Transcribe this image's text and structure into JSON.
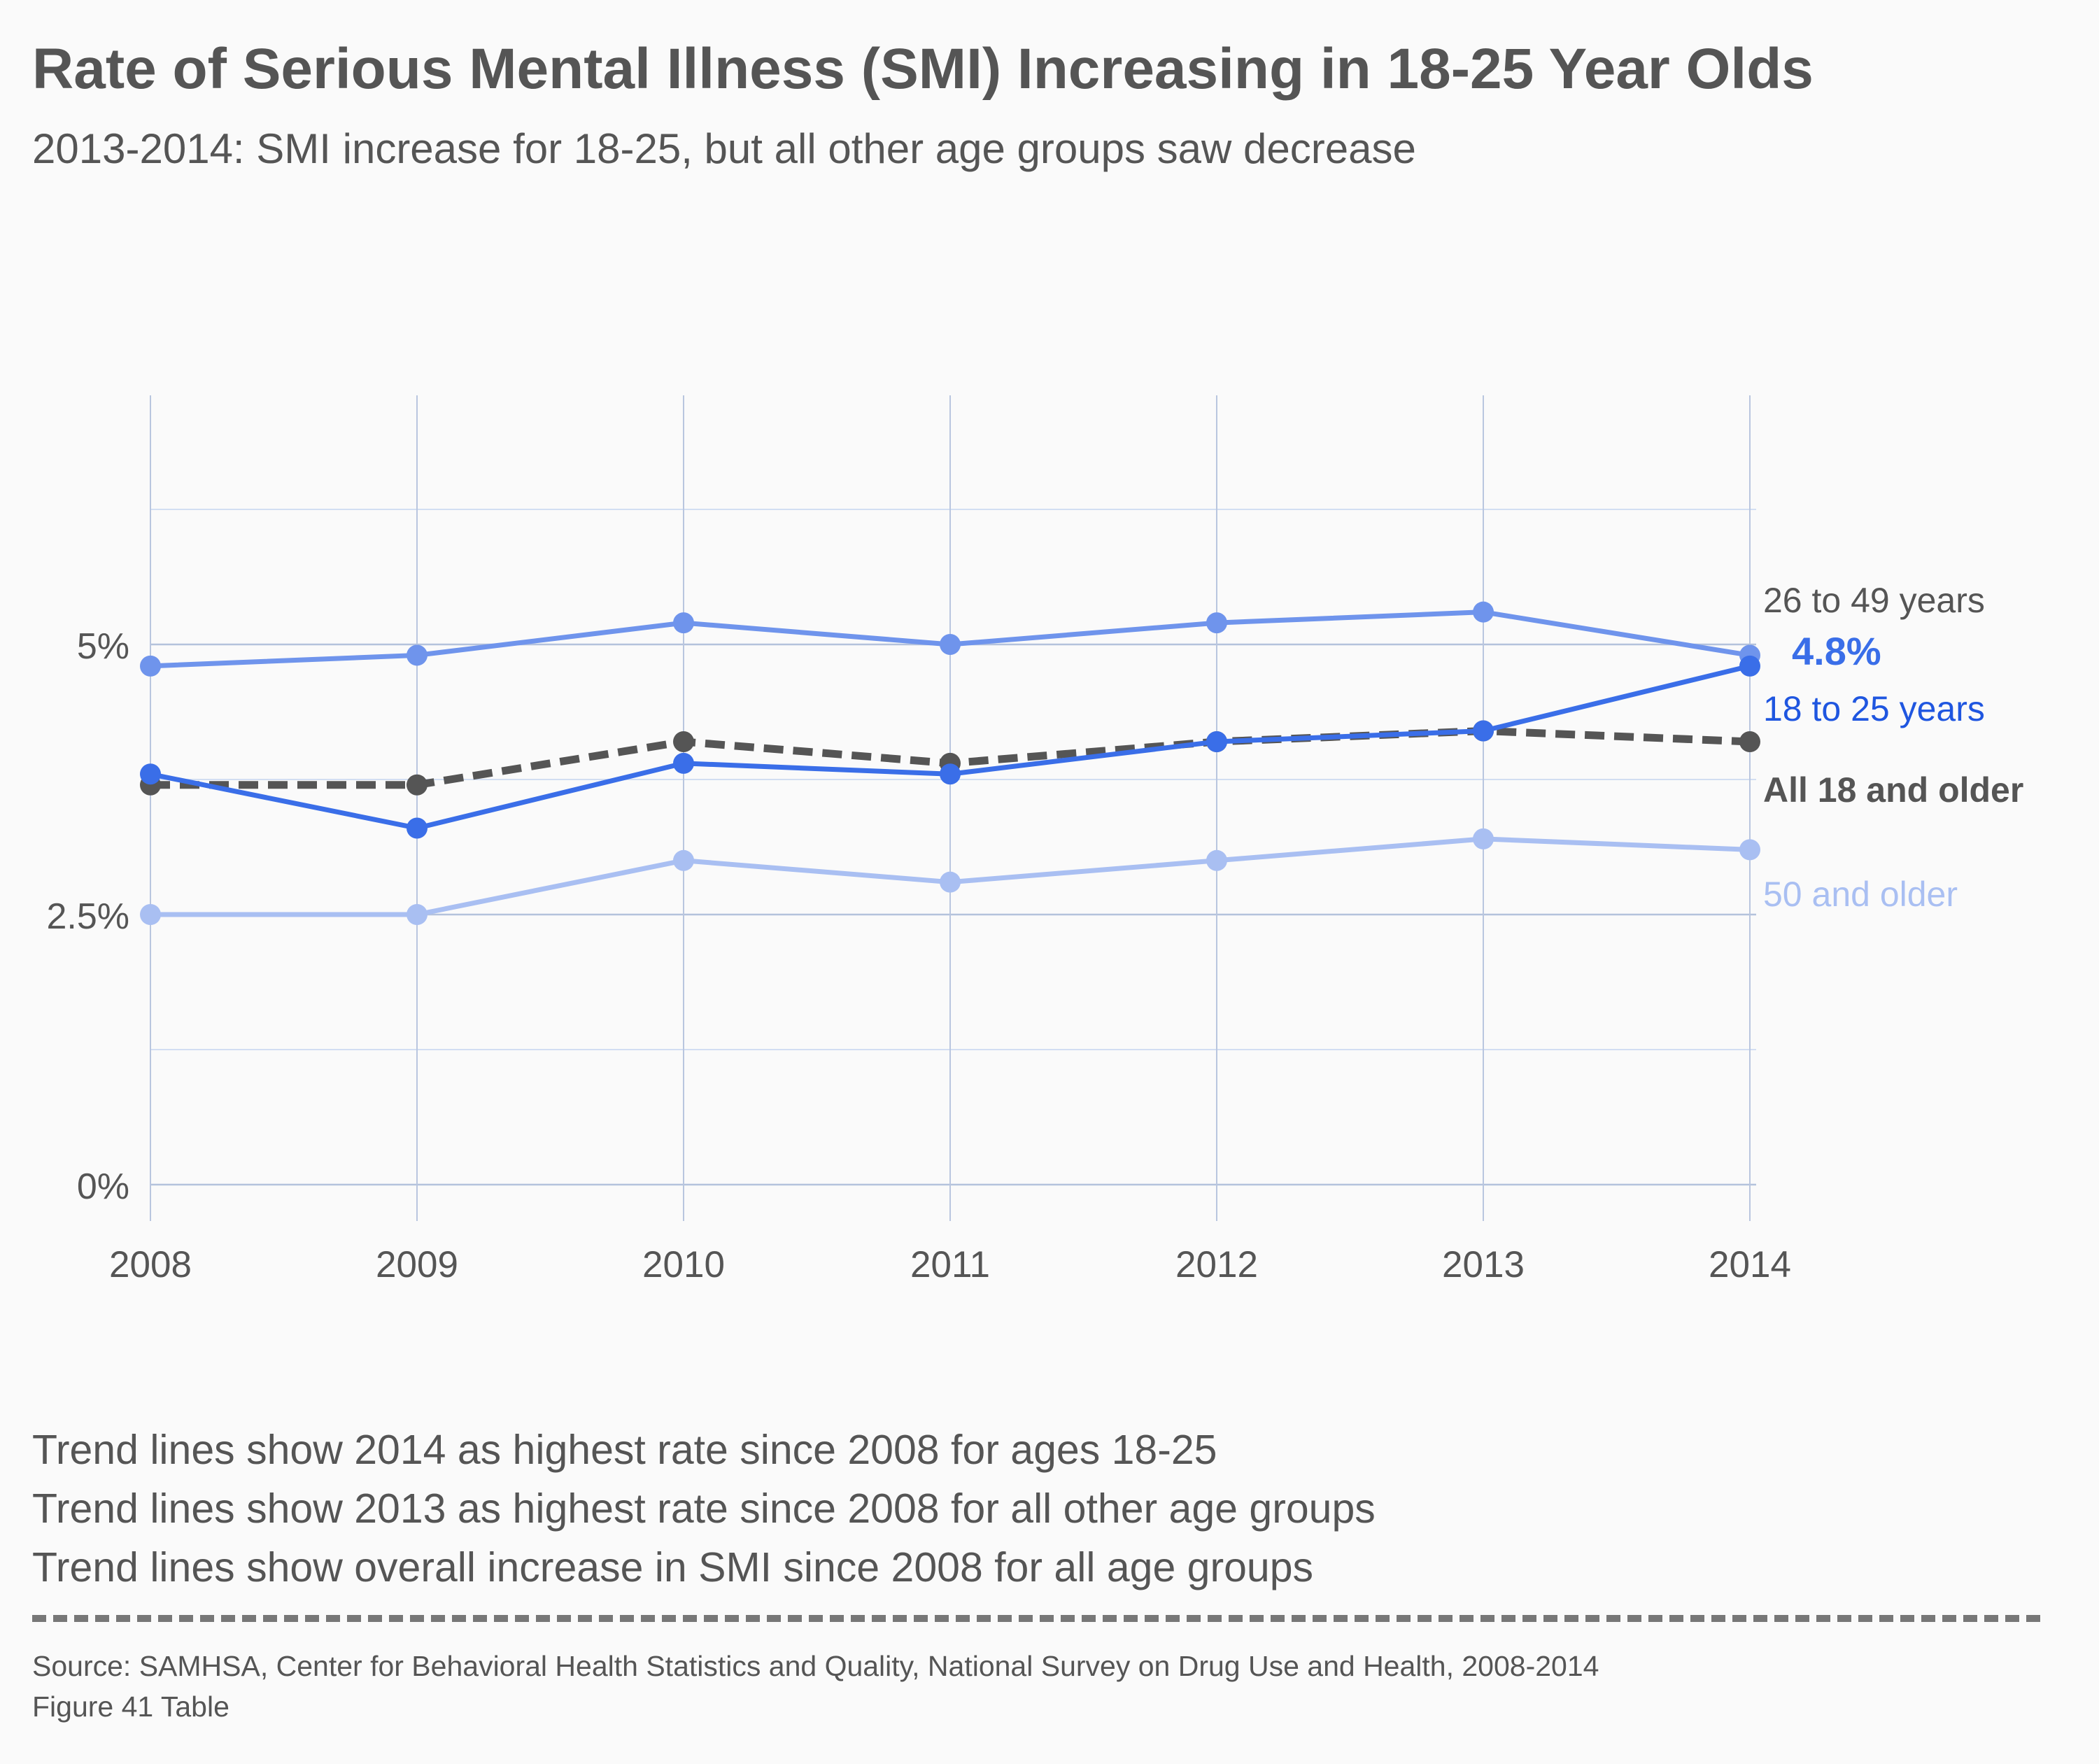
{
  "title": "Rate of Serious Mental Illness (SMI) Increasing in 18-25 Year Olds",
  "subtitle": "2013-2014: SMI increase for 18-25, but all other age groups saw decrease",
  "chart_data": {
    "type": "line",
    "x": [
      "2008",
      "2009",
      "2010",
      "2011",
      "2012",
      "2013",
      "2014"
    ],
    "y_ticks": [
      {
        "value": 0,
        "label": "0%"
      },
      {
        "value": 2.5,
        "label": "2.5%"
      },
      {
        "value": 5,
        "label": "5%"
      }
    ],
    "ylim": [
      0,
      6.25
    ],
    "grid": true,
    "series": [
      {
        "name": "26 to 49 years",
        "color": "#6f94ec",
        "dashed": false,
        "label_bold": false,
        "label_color": "#555555",
        "values": [
          4.8,
          4.9,
          5.2,
          5.0,
          5.2,
          5.3,
          4.9
        ]
      },
      {
        "name": "50 and older",
        "color": "#a9bff2",
        "dashed": false,
        "label_bold": false,
        "label_color": "#a9bff2",
        "values": [
          2.5,
          2.5,
          3.0,
          2.8,
          3.0,
          3.2,
          3.1
        ]
      },
      {
        "name": "All 18 and older",
        "color": "#555555",
        "dashed": true,
        "label_bold": true,
        "label_color": "#555555",
        "values": [
          3.7,
          3.7,
          4.1,
          3.9,
          4.1,
          4.2,
          4.1
        ]
      },
      {
        "name": "18 to 25 years",
        "color": "#3a6ee8",
        "dashed": false,
        "label_bold": false,
        "label_color": "#1f56e0",
        "values": [
          3.8,
          3.3,
          3.9,
          3.8,
          4.1,
          4.2,
          4.8
        ]
      }
    ],
    "annotations": [
      {
        "text": "4.8%",
        "series": "18 to 25 years",
        "x": "2014",
        "y": 4.8,
        "color": "#3a6ee8",
        "bold": true
      }
    ]
  },
  "notes": [
    "Trend lines show 2014 as highest rate since 2008 for ages 18-25",
    "Trend lines show 2013 as highest rate since 2008 for all other age groups",
    "Trend lines show overall increase in SMI since 2008 for all age groups"
  ],
  "source": {
    "line1": "Source: SAMHSA, Center for Behavioral Health Statistics and Quality, National Survey on Drug Use and Health, 2008-2014",
    "line2": "Figure 41 Table"
  }
}
